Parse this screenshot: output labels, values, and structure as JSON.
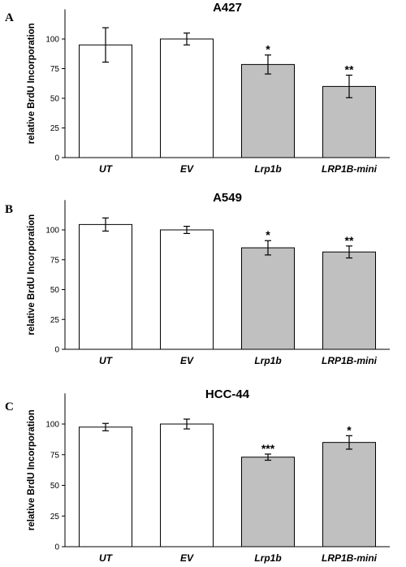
{
  "colors": {
    "control_bar": "#ffffff",
    "treated_bar": "#c0c0c0",
    "stroke": "#000000"
  },
  "chart_data": [
    {
      "type": "bar",
      "panel": "A",
      "title": "A427",
      "ylabel": "relative BrdU Incorporation",
      "ylim": [
        0,
        125
      ],
      "yticks": [
        0,
        25,
        50,
        75,
        100
      ],
      "categories": [
        "UT",
        "EV",
        "Lrp1b",
        "LRP1B-mini"
      ],
      "values": [
        95,
        100,
        78.5,
        60
      ],
      "errors": [
        14.5,
        5,
        8,
        9.5
      ],
      "significance": [
        "",
        "",
        "*",
        "**"
      ],
      "fill": [
        "control",
        "control",
        "treated",
        "treated"
      ],
      "grid": false
    },
    {
      "type": "bar",
      "panel": "B",
      "title": "A549",
      "ylabel": "relative BrdU Incorporation",
      "ylim": [
        0,
        125
      ],
      "yticks": [
        0,
        25,
        50,
        75,
        100
      ],
      "categories": [
        "UT",
        "EV",
        "Lrp1b",
        "LRP1B-mini"
      ],
      "values": [
        104.5,
        100,
        85,
        81.5
      ],
      "errors": [
        5.5,
        3,
        6,
        5
      ],
      "significance": [
        "",
        "",
        "*",
        "**"
      ],
      "fill": [
        "control",
        "control",
        "treated",
        "treated"
      ],
      "grid": false
    },
    {
      "type": "bar",
      "panel": "C",
      "title": "HCC-44",
      "ylabel": "relative BrdU Incorporation",
      "ylim": [
        0,
        125
      ],
      "yticks": [
        0,
        25,
        50,
        75,
        100
      ],
      "categories": [
        "UT",
        "EV",
        "Lrp1b",
        "LRP1B-mini"
      ],
      "values": [
        97.5,
        100,
        73,
        85
      ],
      "errors": [
        3,
        4,
        2.5,
        5.5
      ],
      "significance": [
        "",
        "",
        "***",
        "*"
      ],
      "fill": [
        "control",
        "control",
        "treated",
        "treated"
      ],
      "grid": false
    }
  ]
}
